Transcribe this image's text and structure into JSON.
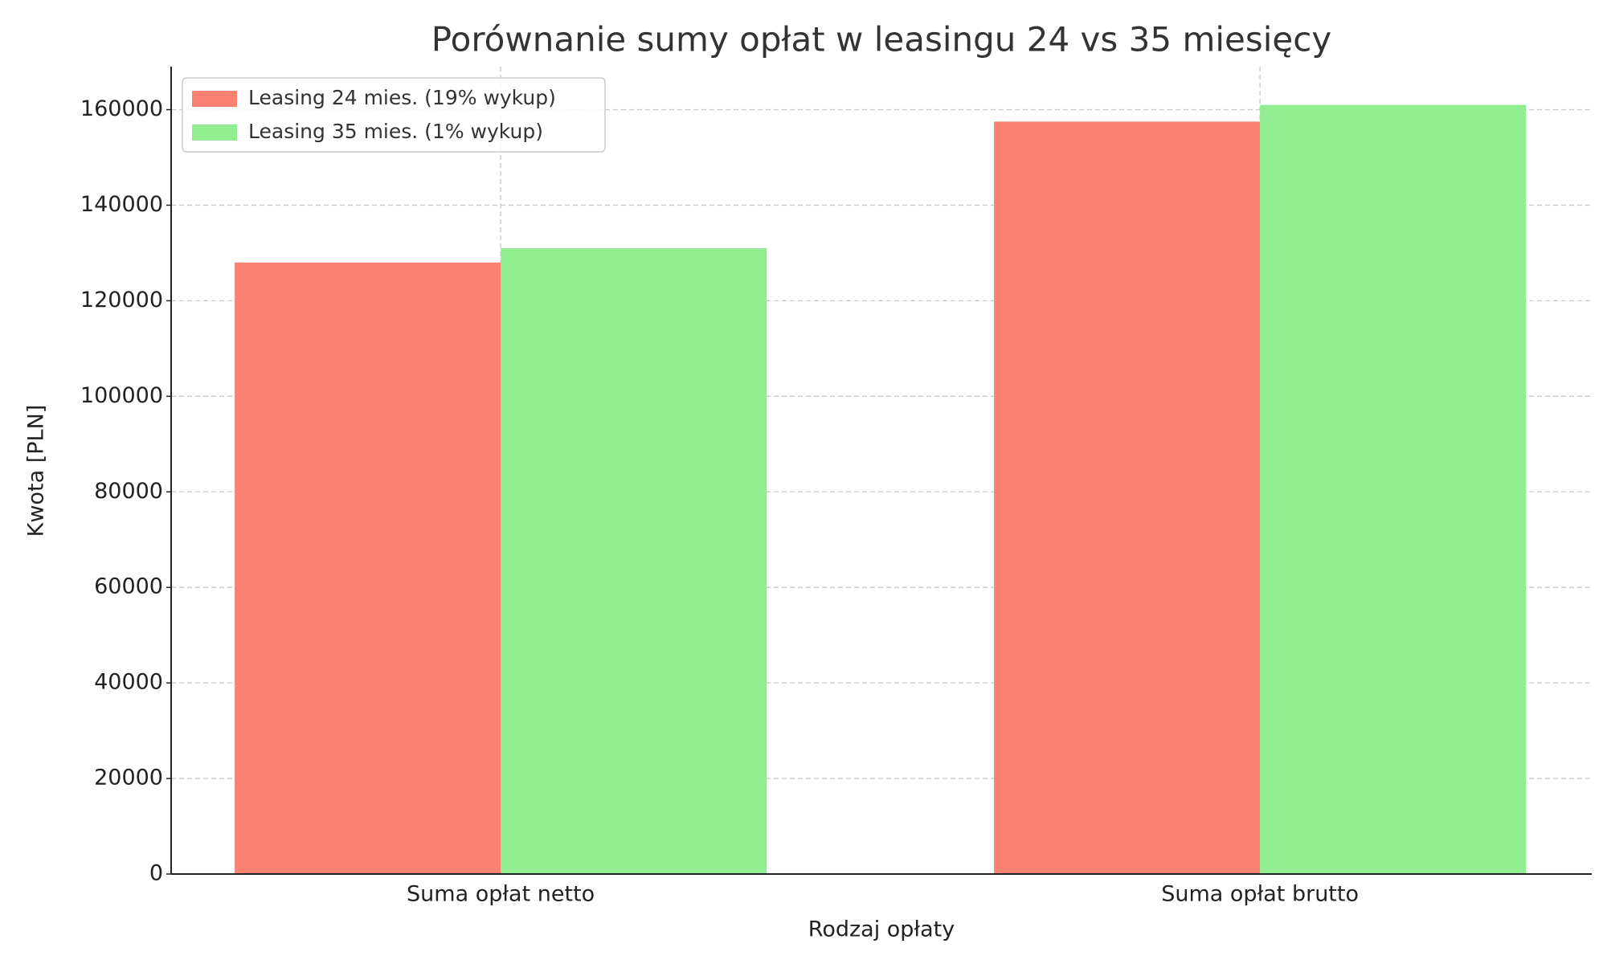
{
  "chart_data": {
    "type": "bar",
    "title": "Porównanie sumy opłat w leasingu 24 vs 35 miesięcy",
    "x_label": "Rodzaj opłaty",
    "y_label": "Kwota [PLN]",
    "categories": [
      "Suma opłat netto",
      "Suma opłat brutto"
    ],
    "series": [
      {
        "name": "Leasing 24 mies. (19% wykup)",
        "color": "#fa8072",
        "values": [
          128000,
          157500
        ]
      },
      {
        "name": "Leasing 35 mies. (1% wykup)",
        "color": "#90ee90",
        "values": [
          131000,
          161000
        ]
      }
    ],
    "ylim": [
      0,
      169000
    ],
    "yticks": [
      0,
      20000,
      40000,
      60000,
      80000,
      100000,
      120000,
      140000,
      160000
    ],
    "grid": true,
    "legend": "upper left"
  }
}
